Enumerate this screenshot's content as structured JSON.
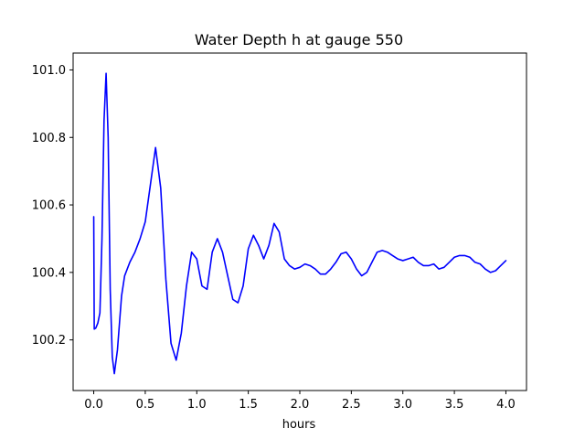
{
  "chart_data": {
    "type": "line",
    "title": "Water Depth h at gauge 550",
    "xlabel": "hours",
    "ylabel": "",
    "xlim": [
      -0.2,
      4.2
    ],
    "ylim": [
      100.05,
      101.05
    ],
    "xticks": [
      0.0,
      0.5,
      1.0,
      1.5,
      2.0,
      2.5,
      3.0,
      3.5,
      4.0
    ],
    "xtick_labels": [
      "0.0",
      "0.5",
      "1.0",
      "1.5",
      "2.0",
      "2.5",
      "3.0",
      "3.5",
      "4.0"
    ],
    "yticks": [
      100.2,
      100.4,
      100.6,
      100.8,
      101.0
    ],
    "ytick_labels": [
      "100.2",
      "100.4",
      "100.6",
      "100.8",
      "101.0"
    ],
    "grid": false,
    "legend": "none",
    "series": [
      {
        "color": "#0000ff",
        "x": [
          0.0,
          0.005,
          0.02,
          0.04,
          0.06,
          0.08,
          0.1,
          0.12,
          0.14,
          0.16,
          0.18,
          0.2,
          0.23,
          0.27,
          0.3,
          0.35,
          0.4,
          0.45,
          0.5,
          0.55,
          0.6,
          0.65,
          0.7,
          0.75,
          0.8,
          0.85,
          0.9,
          0.95,
          1.0,
          1.05,
          1.1,
          1.15,
          1.2,
          1.25,
          1.3,
          1.35,
          1.4,
          1.45,
          1.5,
          1.55,
          1.6,
          1.65,
          1.7,
          1.75,
          1.8,
          1.85,
          1.9,
          1.95,
          2.0,
          2.05,
          2.1,
          2.15,
          2.2,
          2.25,
          2.3,
          2.35,
          2.4,
          2.45,
          2.5,
          2.55,
          2.6,
          2.65,
          2.7,
          2.75,
          2.8,
          2.85,
          2.9,
          2.95,
          3.0,
          3.05,
          3.1,
          3.15,
          3.2,
          3.25,
          3.3,
          3.35,
          3.4,
          3.45,
          3.5,
          3.55,
          3.6,
          3.65,
          3.7,
          3.75,
          3.8,
          3.85,
          3.9,
          3.95,
          4.0
        ],
        "y": [
          100.565,
          100.232,
          100.235,
          100.25,
          100.28,
          100.5,
          100.85,
          100.99,
          100.8,
          100.35,
          100.15,
          100.1,
          100.17,
          100.33,
          100.39,
          100.43,
          100.46,
          100.5,
          100.55,
          100.66,
          100.77,
          100.65,
          100.38,
          100.19,
          100.14,
          100.22,
          100.36,
          100.46,
          100.44,
          100.36,
          100.35,
          100.46,
          100.5,
          100.46,
          100.39,
          100.32,
          100.31,
          100.36,
          100.47,
          100.51,
          100.48,
          100.44,
          100.48,
          100.545,
          100.52,
          100.44,
          100.42,
          100.41,
          100.415,
          100.425,
          100.42,
          100.41,
          100.395,
          100.395,
          100.41,
          100.43,
          100.455,
          100.46,
          100.44,
          100.41,
          100.39,
          100.4,
          100.43,
          100.46,
          100.465,
          100.46,
          100.45,
          100.44,
          100.435,
          100.44,
          100.445,
          100.43,
          100.42,
          100.42,
          100.425,
          100.41,
          100.415,
          100.43,
          100.445,
          100.45,
          100.45,
          100.445,
          100.43,
          100.425,
          100.41,
          100.4,
          100.405,
          100.42,
          100.435
        ]
      }
    ]
  }
}
